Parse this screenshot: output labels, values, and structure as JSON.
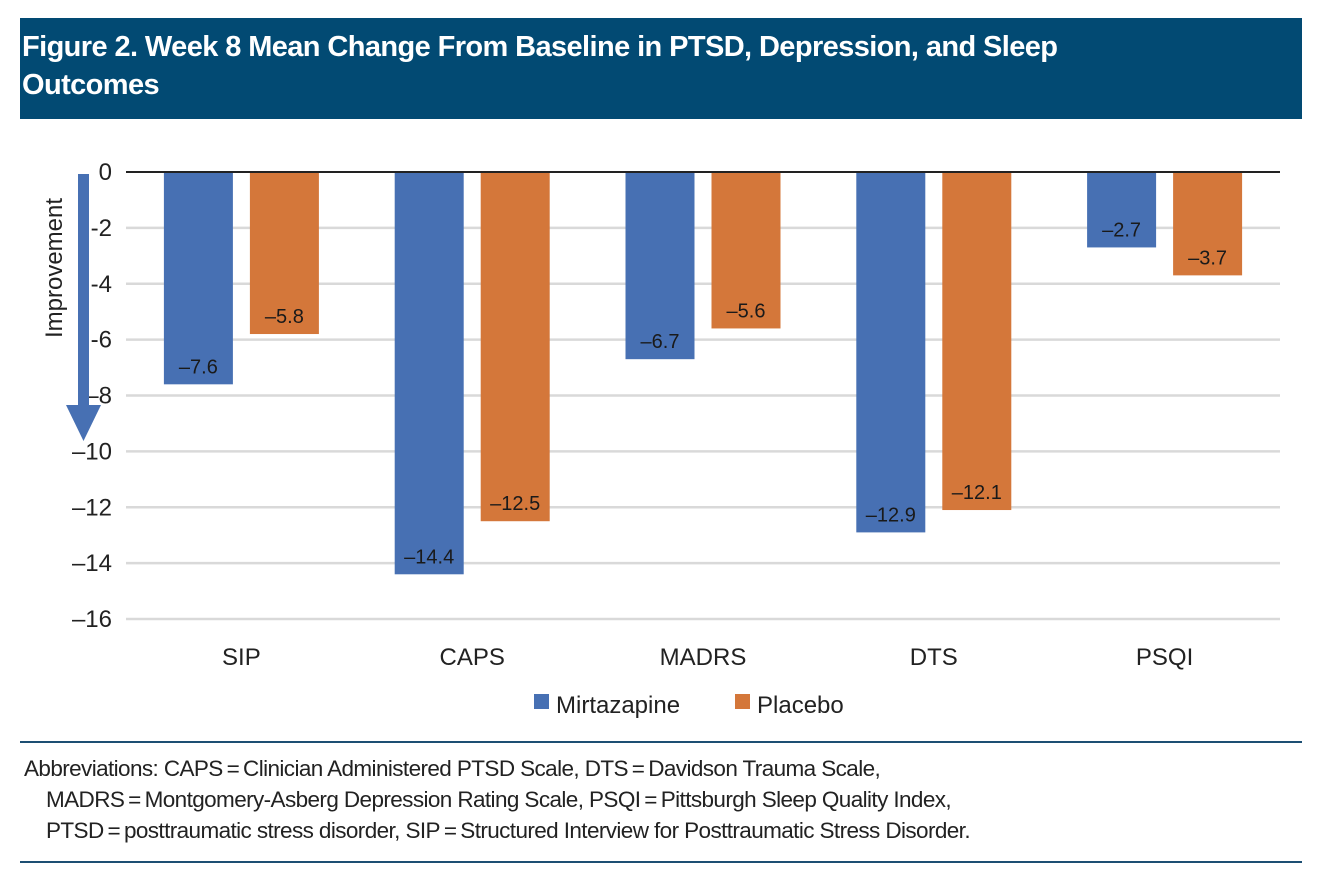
{
  "header": {
    "title_line1": "Figure 2. Week 8 Mean Change From Baseline in PTSD, Depression, and Sleep",
    "title_line2": "Outcomes"
  },
  "colors": {
    "header_bg": "#024a73",
    "mirtazapine": "#4770b3",
    "placebo": "#d4773a",
    "gridline": "#d9d9d9",
    "rule": "#1d4f73"
  },
  "chart_data": {
    "type": "bar",
    "title": "Week 8 Mean Change From Baseline in PTSD, Depression, and Sleep Outcomes",
    "categories": [
      "SIP",
      "CAPS",
      "MADRS",
      "DTS",
      "PSQI"
    ],
    "series": [
      {
        "name": "Mirtazapine",
        "values": [
          -7.6,
          -14.4,
          -6.7,
          -12.9,
          -2.7
        ],
        "labels": [
          "–7.6",
          "–14.4",
          "–6.7",
          "–12.9",
          "–2.7"
        ]
      },
      {
        "name": "Placebo",
        "values": [
          -5.8,
          -12.5,
          -5.6,
          -12.1,
          -3.7
        ],
        "labels": [
          "–5.8",
          "–12.5",
          "–5.6",
          "–12.1",
          "–3.7"
        ]
      }
    ],
    "xlabel": "",
    "ylabel": "Improvement",
    "ylabel_arrow": "down",
    "ylim": [
      -16,
      0
    ],
    "yticks": [
      0,
      -2,
      -4,
      -6,
      -8,
      -10,
      -12,
      -14,
      -16
    ],
    "ytick_labels": [
      "0",
      "-2",
      "-4",
      "-6",
      "–8",
      "–10",
      "–12",
      "–14",
      "–16"
    ],
    "grid": true,
    "legend": {
      "position": "bottom",
      "entries": [
        "Mirtazapine",
        "Placebo"
      ]
    }
  },
  "footnote": {
    "lines": [
      "Abbreviations: CAPS = Clinician Administered PTSD Scale, DTS = Davidson Trauma Scale,",
      "MADRS = Montgomery-Asberg Depression Rating Scale, PSQI = Pittsburgh Sleep Quality Index,",
      "PTSD = posttraumatic stress disorder, SIP = Structured Interview for Posttraumatic Stress Disorder."
    ]
  }
}
